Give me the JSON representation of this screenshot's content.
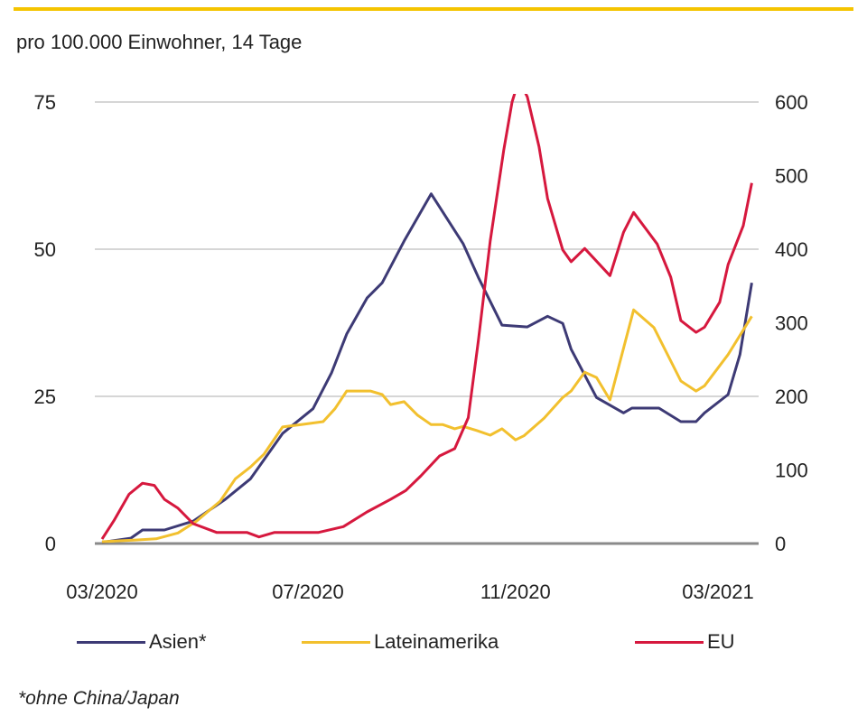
{
  "subtitle": "pro 100.000 Einwohner, 14 Tage",
  "footnote": "*ohne China/Japan",
  "colors": {
    "top_bar": "#f5c400",
    "asien": "#3d3a75",
    "lateinamerika": "#f2c02e",
    "eu": "#d6183e"
  },
  "chart_data": {
    "type": "line",
    "title": "",
    "xlabel": "",
    "ylabel": "",
    "x_ticks": [
      {
        "date": "2020-03-01",
        "label": "03/2020"
      },
      {
        "date": "2020-07-01",
        "label": "07/2020"
      },
      {
        "date": "2020-11-01",
        "label": "11/2020"
      },
      {
        "date": "2021-03-01",
        "label": "03/2021"
      }
    ],
    "y_left": {
      "range": [
        0,
        75
      ],
      "ticks": [
        "0",
        "25",
        "50",
        "75"
      ]
    },
    "y_right": {
      "range": [
        0,
        600
      ],
      "ticks": [
        "0",
        "100",
        "200",
        "300",
        "400",
        "500",
        "600"
      ]
    },
    "grid": true,
    "legend_position": "bottom",
    "series": [
      {
        "name": "Asien*",
        "axis": "left",
        "color": "#3d3a75",
        "points": [
          [
            "2020-03-01",
            0.2
          ],
          [
            "2020-03-18",
            0.9
          ],
          [
            "2020-03-25",
            2.3
          ],
          [
            "2020-04-07",
            2.3
          ],
          [
            "2020-04-24",
            3.8
          ],
          [
            "2020-05-13",
            7.5
          ],
          [
            "2020-05-28",
            11.0
          ],
          [
            "2020-06-16",
            18.7
          ],
          [
            "2020-07-04",
            22.9
          ],
          [
            "2020-07-15",
            29.0
          ],
          [
            "2020-07-24",
            35.6
          ],
          [
            "2020-08-05",
            41.7
          ],
          [
            "2020-08-14",
            44.3
          ],
          [
            "2020-08-27",
            51.4
          ],
          [
            "2020-09-12",
            59.4
          ],
          [
            "2020-10-01",
            50.9
          ],
          [
            "2020-10-10",
            45.2
          ],
          [
            "2020-10-24",
            37.1
          ],
          [
            "2020-11-08",
            36.8
          ],
          [
            "2020-11-20",
            38.6
          ],
          [
            "2020-11-29",
            37.4
          ],
          [
            "2020-12-04",
            33.0
          ],
          [
            "2020-12-19",
            24.8
          ],
          [
            "2021-01-04",
            22.2
          ],
          [
            "2021-01-09",
            23.0
          ],
          [
            "2021-01-25",
            23.0
          ],
          [
            "2021-02-07",
            20.7
          ],
          [
            "2021-02-16",
            20.7
          ],
          [
            "2021-02-21",
            22.2
          ],
          [
            "2021-03-07",
            25.3
          ],
          [
            "2021-03-14",
            32.1
          ],
          [
            "2021-03-21",
            44.3
          ]
        ]
      },
      {
        "name": "Lateinamerika",
        "axis": "left",
        "color": "#f2c02e",
        "points": [
          [
            "2020-03-01",
            0.3
          ],
          [
            "2020-03-21",
            0.6
          ],
          [
            "2020-04-02",
            0.8
          ],
          [
            "2020-04-15",
            1.8
          ],
          [
            "2020-04-26",
            3.8
          ],
          [
            "2020-05-10",
            7.2
          ],
          [
            "2020-05-19",
            11.0
          ],
          [
            "2020-05-28",
            13.0
          ],
          [
            "2020-06-05",
            15.2
          ],
          [
            "2020-06-16",
            19.8
          ],
          [
            "2020-06-27",
            20.2
          ],
          [
            "2020-07-10",
            20.7
          ],
          [
            "2020-07-17",
            22.9
          ],
          [
            "2020-07-24",
            25.9
          ],
          [
            "2020-08-07",
            25.9
          ],
          [
            "2020-08-14",
            25.3
          ],
          [
            "2020-08-19",
            23.6
          ],
          [
            "2020-08-27",
            24.1
          ],
          [
            "2020-09-04",
            21.8
          ],
          [
            "2020-09-12",
            20.2
          ],
          [
            "2020-09-19",
            20.2
          ],
          [
            "2020-09-26",
            19.5
          ],
          [
            "2020-10-01",
            19.9
          ],
          [
            "2020-10-09",
            19.2
          ],
          [
            "2020-10-17",
            18.4
          ],
          [
            "2020-10-24",
            19.5
          ],
          [
            "2020-11-01",
            17.6
          ],
          [
            "2020-11-06",
            18.3
          ],
          [
            "2020-11-18",
            21.3
          ],
          [
            "2020-11-29",
            24.8
          ],
          [
            "2020-12-04",
            25.9
          ],
          [
            "2020-12-12",
            29.1
          ],
          [
            "2020-12-19",
            28.2
          ],
          [
            "2020-12-27",
            24.4
          ],
          [
            "2021-01-10",
            39.7
          ],
          [
            "2021-01-22",
            36.7
          ],
          [
            "2021-02-07",
            27.6
          ],
          [
            "2021-02-16",
            25.9
          ],
          [
            "2021-02-21",
            26.8
          ],
          [
            "2021-03-07",
            32.1
          ],
          [
            "2021-03-21",
            38.6
          ]
        ]
      },
      {
        "name": "EU",
        "axis": "right",
        "color": "#d6183e",
        "points": [
          [
            "2020-03-01",
            6
          ],
          [
            "2020-03-08",
            31
          ],
          [
            "2020-03-17",
            67
          ],
          [
            "2020-03-25",
            82
          ],
          [
            "2020-04-01",
            79
          ],
          [
            "2020-04-07",
            60
          ],
          [
            "2020-04-15",
            48
          ],
          [
            "2020-04-24",
            27
          ],
          [
            "2020-05-08",
            15
          ],
          [
            "2020-05-26",
            15
          ],
          [
            "2020-06-02",
            9
          ],
          [
            "2020-06-11",
            15
          ],
          [
            "2020-07-07",
            15
          ],
          [
            "2020-07-22",
            23
          ],
          [
            "2020-08-05",
            43
          ],
          [
            "2020-08-19",
            60
          ],
          [
            "2020-08-28",
            72
          ],
          [
            "2020-09-06",
            92
          ],
          [
            "2020-09-17",
            119
          ],
          [
            "2020-09-26",
            129
          ],
          [
            "2020-10-04",
            171
          ],
          [
            "2020-10-10",
            276
          ],
          [
            "2020-10-17",
            411
          ],
          [
            "2020-10-25",
            534
          ],
          [
            "2020-10-30",
            600
          ],
          [
            "2020-11-03",
            630
          ],
          [
            "2020-11-08",
            607
          ],
          [
            "2020-11-15",
            539
          ],
          [
            "2020-11-20",
            469
          ],
          [
            "2020-11-29",
            399
          ],
          [
            "2020-12-04",
            383
          ],
          [
            "2020-12-12",
            401
          ],
          [
            "2020-12-27",
            364
          ],
          [
            "2021-01-04",
            423
          ],
          [
            "2021-01-10",
            450
          ],
          [
            "2021-01-24",
            407
          ],
          [
            "2021-02-01",
            362
          ],
          [
            "2021-02-07",
            303
          ],
          [
            "2021-02-16",
            287
          ],
          [
            "2021-02-21",
            294
          ],
          [
            "2021-03-02",
            328
          ],
          [
            "2021-03-07",
            379
          ],
          [
            "2021-03-16",
            432
          ],
          [
            "2021-03-21",
            490
          ]
        ]
      }
    ]
  },
  "legend": [
    {
      "label": "Asien*",
      "color": "#3d3a75"
    },
    {
      "label": "Lateinamerika",
      "color": "#f2c02e"
    },
    {
      "label": "EU",
      "color": "#d6183e"
    }
  ]
}
